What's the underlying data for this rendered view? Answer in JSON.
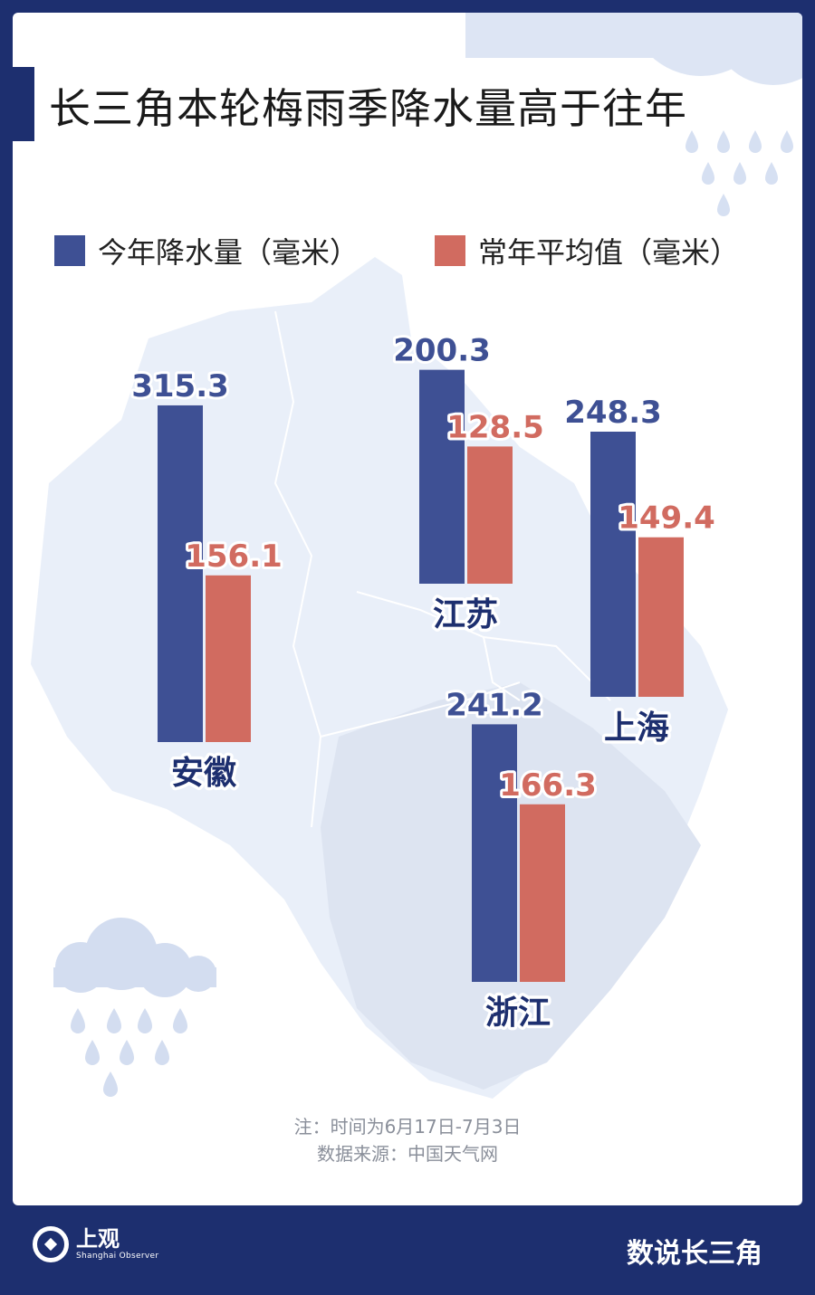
{
  "chart_data": {
    "type": "bar",
    "title": "长三角本轮梅雨季降水量高于往年",
    "categories": [
      "安徽",
      "江苏",
      "上海",
      "浙江"
    ],
    "series": [
      {
        "name": "今年降水量（毫米）",
        "values": [
          315.3,
          200.3,
          248.3,
          241.2
        ]
      },
      {
        "name": "常年平均值（毫米）",
        "values": [
          156.1,
          128.5,
          149.4,
          166.3
        ]
      }
    ],
    "legend": "top"
  },
  "colors": {
    "current": "#3e5094",
    "normal": "#d16b60",
    "navy": "#1d2f6f",
    "map": "#e7edf8"
  },
  "notes": {
    "period": "注：时间为6月17日-7月3日",
    "source": "数据来源：中国天气网"
  },
  "footer": {
    "brand": "上观",
    "brand_en": "Shanghai Observer",
    "column": "数说长三角"
  },
  "icons": [
    "rain-cloud-icon",
    "raindrop-icon",
    "logo-icon"
  ]
}
